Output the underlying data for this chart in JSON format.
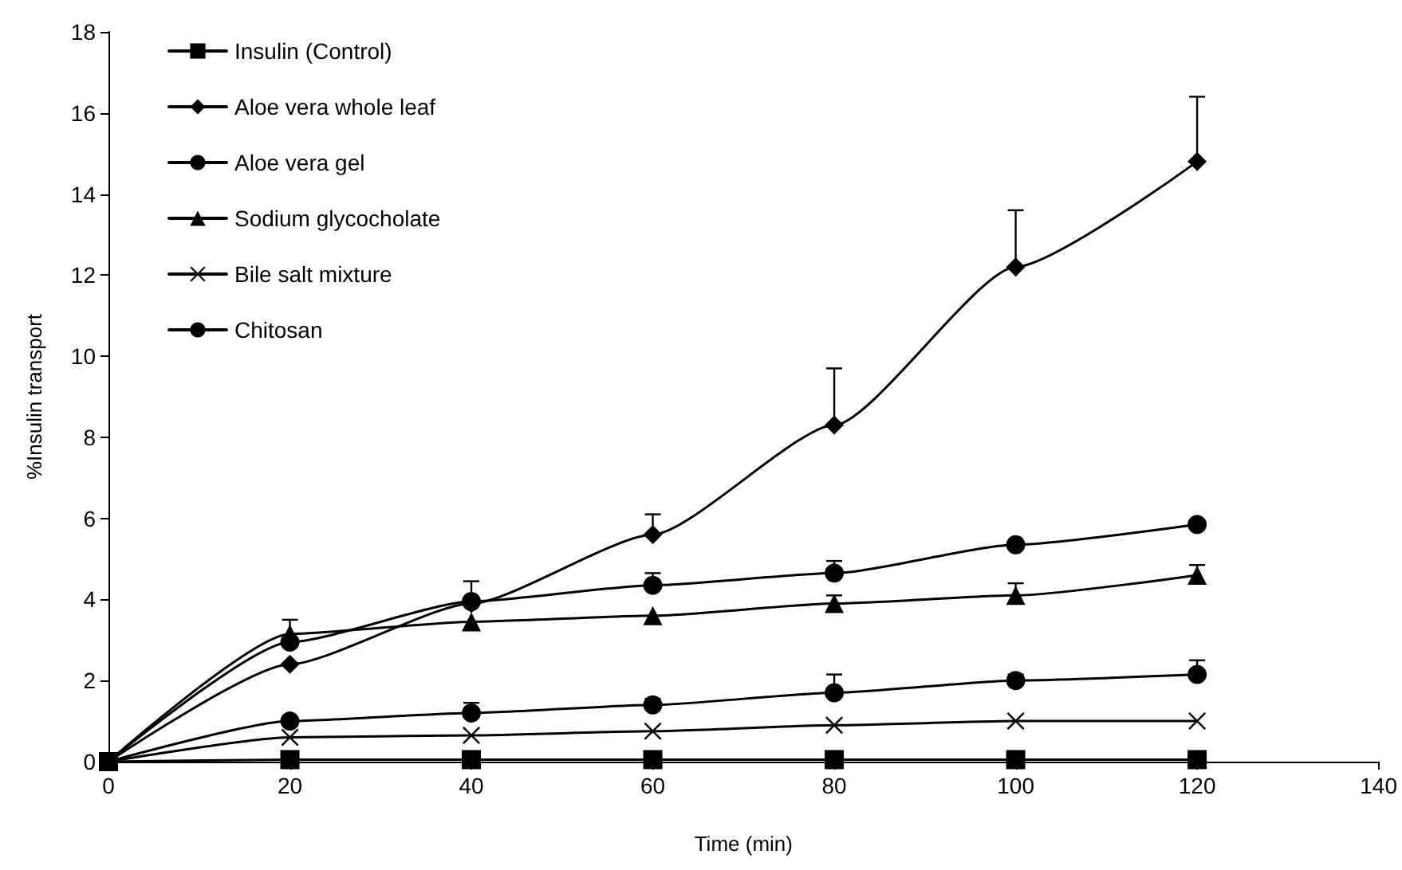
{
  "chart_data": {
    "type": "line",
    "xlabel": "Time (min)",
    "ylabel": "%Insulin transport",
    "x": [
      0,
      20,
      40,
      60,
      80,
      100,
      120
    ],
    "xlim": [
      0,
      140
    ],
    "xticks": [
      0,
      20,
      40,
      60,
      80,
      100,
      120,
      140
    ],
    "ylim": [
      0,
      18
    ],
    "yticks": [
      0,
      2,
      4,
      6,
      8,
      10,
      12,
      14,
      16,
      18
    ],
    "grid": false,
    "legend": "top left",
    "line_style": "solid",
    "series": [
      {
        "name": "Insulin (Control)",
        "color": "#000000",
        "marker": "square",
        "values": [
          0,
          0.05,
          0.05,
          0.05,
          0.05,
          0.05,
          0.05
        ]
      },
      {
        "name": "Aloe vera whole leaf",
        "color": "#000000",
        "marker": "diamond",
        "values": [
          0,
          2.4,
          3.9,
          5.6,
          8.3,
          12.2,
          14.8
        ],
        "errors": [
          null,
          null,
          [
            3.9,
            4.45
          ],
          [
            5.6,
            6.1
          ],
          [
            8.3,
            9.7
          ],
          [
            12.2,
            13.6
          ],
          [
            14.8,
            16.4
          ]
        ]
      },
      {
        "name": "Aloe vera gel",
        "color": "#000000",
        "marker": "circle",
        "values": [
          0,
          2.95,
          3.95,
          4.35,
          4.65,
          5.35,
          5.85
        ],
        "errors": [
          null,
          null,
          null,
          [
            4.35,
            4.65
          ],
          [
            4.65,
            4.95
          ],
          null,
          null
        ]
      },
      {
        "name": "Sodium glycocholate",
        "color": "#000000",
        "marker": "triangle",
        "values": [
          0,
          3.15,
          3.45,
          3.6,
          3.9,
          4.1,
          4.6
        ],
        "errors": [
          null,
          [
            3.15,
            3.5
          ],
          null,
          null,
          [
            3.9,
            4.1
          ],
          [
            4.1,
            4.4
          ],
          [
            4.6,
            4.85
          ]
        ]
      },
      {
        "name": "Bile salt mixture",
        "color": "#000000",
        "marker": "cross",
        "values": [
          0,
          0.6,
          0.65,
          0.75,
          0.9,
          1.0,
          1.0
        ]
      },
      {
        "name": "Chitosan",
        "color": "#000000",
        "marker": "circle",
        "values": [
          0,
          1.0,
          1.2,
          1.4,
          1.7,
          2.0,
          2.15
        ],
        "errors": [
          null,
          null,
          [
            1.2,
            1.45
          ],
          [
            1.4,
            1.55
          ],
          [
            1.7,
            2.15
          ],
          [
            2.0,
            2.15
          ],
          [
            2.15,
            2.5
          ]
        ]
      }
    ]
  }
}
